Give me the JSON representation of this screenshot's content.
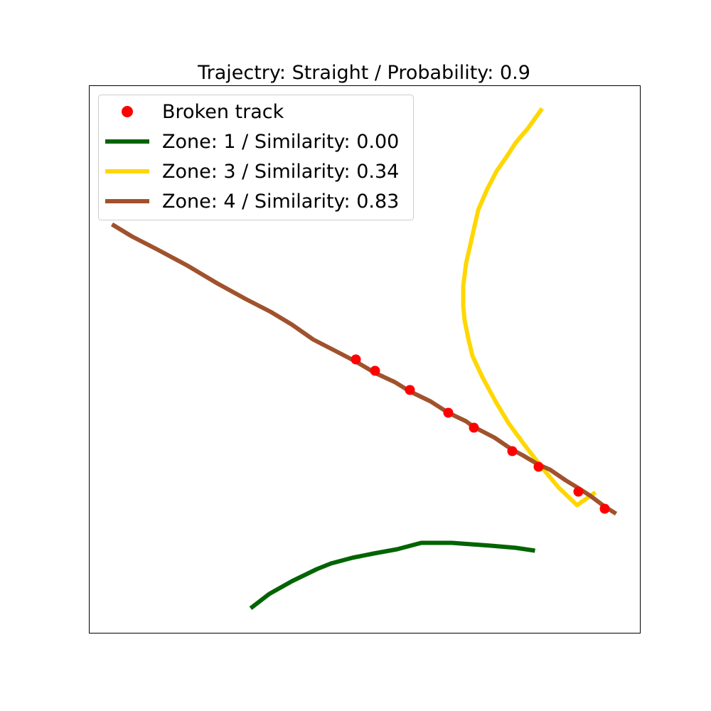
{
  "chart_data": {
    "type": "line",
    "title": "Trajectry: Straight / Probability: 0.9",
    "xlabel": "",
    "ylabel": "",
    "grid": false,
    "axis_ticks": false,
    "legend_position": "upper-left",
    "xlim": [
      0,
      775
    ],
    "ylim": [
      0,
      770
    ],
    "points": {
      "name": "Broken track",
      "color": "#ff0000",
      "x": [
        375,
        402,
        451,
        505,
        541,
        595,
        632,
        688,
        725
      ],
      "y": [
        385,
        369,
        342,
        310,
        289,
        256,
        234,
        199,
        175
      ]
    },
    "series": [
      {
        "name": "Zone: 1 / Similarity: 0.00",
        "color": "#006400",
        "x": [
          227,
          253,
          285,
          320,
          340,
          370,
          400,
          433,
          467,
          510,
          565,
          600,
          627
        ],
        "y": [
          35,
          55,
          73,
          90,
          98,
          106,
          112,
          118,
          127,
          127,
          123,
          120,
          116
        ]
      },
      {
        "name": "Zone: 3 / Similarity: 0.34",
        "color": "#ffd700",
        "x": [
          637,
          617,
          600,
          587,
          573,
          560,
          547,
          538,
          530,
          526,
          526,
          528,
          533,
          539,
          553,
          572,
          590,
          612,
          635,
          660,
          686,
          712
        ],
        "y": [
          738,
          710,
          690,
          670,
          650,
          625,
          595,
          555,
          520,
          488,
          460,
          440,
          415,
          390,
          360,
          325,
          295,
          265,
          235,
          205,
          180,
          198
        ]
      },
      {
        "name": "Zone: 4 / Similarity: 0.83",
        "color": "#a0522d",
        "x": [
          32,
          60,
          95,
          138,
          180,
          220,
          255,
          285,
          315,
          350,
          375,
          402,
          430,
          451,
          480,
          505,
          530,
          541,
          570,
          595,
          610,
          632,
          648,
          670,
          688,
          705,
          725,
          741
        ],
        "y": [
          575,
          558,
          540,
          517,
          492,
          470,
          452,
          434,
          413,
          395,
          382,
          366,
          353,
          340,
          326,
          310,
          298,
          290,
          275,
          258,
          250,
          237,
          230,
          215,
          204,
          193,
          178,
          168
        ]
      }
    ]
  }
}
